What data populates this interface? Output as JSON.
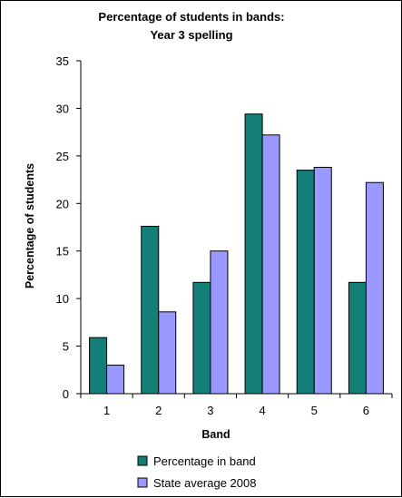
{
  "chart_data": {
    "type": "bar",
    "title": "Percentage of students in bands:",
    "subtitle": "Year 3 spelling",
    "xlabel": "Band",
    "ylabel": "Percentage of students",
    "categories": [
      "1",
      "2",
      "3",
      "4",
      "5",
      "6"
    ],
    "series": [
      {
        "name": "Percentage in band",
        "color": "#137f76",
        "values": [
          5.9,
          17.6,
          11.7,
          29.4,
          23.5,
          11.7
        ]
      },
      {
        "name": "State average 2008",
        "color": "#9999ff",
        "values": [
          3.0,
          8.6,
          15.0,
          27.2,
          23.8,
          22.2
        ]
      }
    ],
    "ylim": [
      0,
      35
    ],
    "yticks": [
      "0",
      "5",
      "10",
      "15",
      "20",
      "25",
      "30",
      "35"
    ],
    "grid": false,
    "legend_position": "bottom"
  }
}
